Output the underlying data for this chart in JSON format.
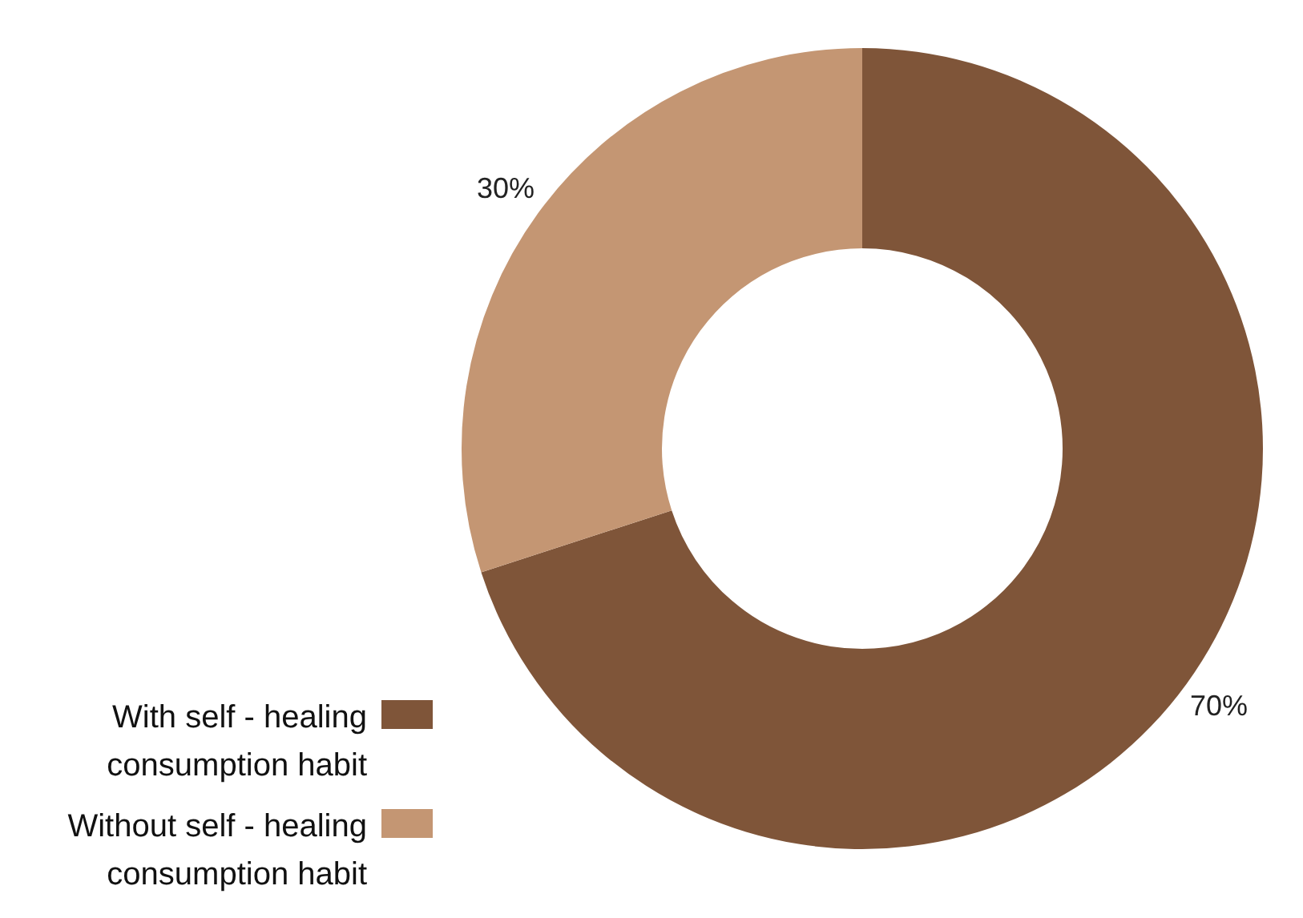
{
  "chart_data": {
    "type": "donut",
    "categories": [
      "With self - healing consumption habit",
      "Without self - healing consumption habit"
    ],
    "values": [
      70,
      30
    ],
    "colors": [
      "#7f5539",
      "#c49673"
    ],
    "value_labels": [
      "70%",
      "30%"
    ],
    "legend": "bottom left"
  }
}
